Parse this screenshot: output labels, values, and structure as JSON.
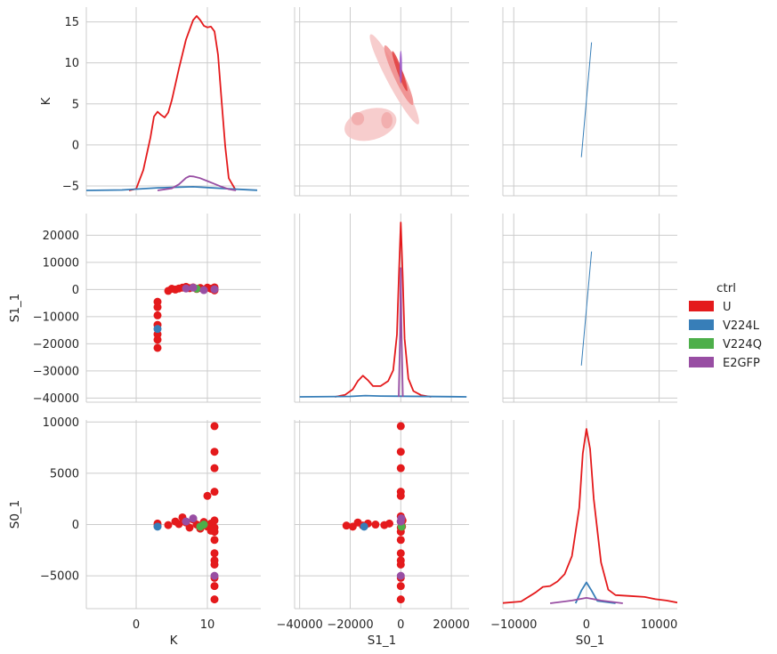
{
  "chart_data": {
    "type": "pairplot",
    "variables": [
      "K",
      "S1_1",
      "S0_1"
    ],
    "axis_labels": {
      "x": [
        "K",
        "S1_1",
        "S0_1"
      ],
      "y": [
        "K",
        "S1_1",
        "S0_1"
      ]
    },
    "axes": {
      "K": {
        "lim": [
          -7,
          17.5
        ],
        "ylim": [
          -6.2,
          16.8
        ],
        "ticks": [
          0,
          10
        ],
        "yticks": [
          -5,
          0,
          5,
          10,
          15
        ]
      },
      "S1_1": {
        "lim": [
          -42000,
          27000
        ],
        "ylim": [
          -41500,
          28000
        ],
        "ticks": [
          -40000,
          -20000,
          0,
          20000
        ],
        "yticks": [
          -40000,
          -30000,
          -20000,
          -10000,
          0,
          10000,
          20000
        ]
      },
      "S0_1": {
        "lim": [
          -11500,
          12500
        ],
        "ylim": [
          -8200,
          10200
        ],
        "ticks": [
          -10000,
          0,
          10000
        ],
        "yticks": [
          -5000,
          0,
          5000,
          10000
        ]
      }
    },
    "grid": true,
    "legend": {
      "title": "ctrl",
      "placement": "right",
      "entries": [
        {
          "name": "U",
          "color": "#e41a1c"
        },
        {
          "name": "V224L",
          "color": "#377eb8"
        },
        {
          "name": "V224Q",
          "color": "#4daf4a"
        },
        {
          "name": "E2GFP",
          "color": "#984ea3"
        }
      ]
    },
    "diag_kde": {
      "K": [
        {
          "name": "U",
          "x": [
            -1,
            0,
            1,
            2,
            2.5,
            3,
            3.5,
            4,
            4.5,
            5,
            6,
            7,
            8,
            8.5,
            9,
            9.5,
            10,
            10.5,
            11,
            11.5,
            12,
            12.5,
            13,
            14
          ],
          "y": [
            0,
            0.2,
            2.5,
            6.5,
            9.1,
            9.7,
            9.3,
            9.0,
            9.6,
            11.1,
            15,
            18.6,
            21.0,
            21.5,
            21.0,
            20.3,
            20.1,
            20.2,
            19.6,
            16.7,
            11.0,
            5.5,
            1.5,
            0
          ]
        },
        {
          "name": "V224L",
          "x": [
            -7,
            -2,
            3,
            8,
            13,
            17
          ],
          "y": [
            0,
            0.05,
            0.32,
            0.45,
            0.2,
            0.02
          ]
        },
        {
          "name": "E2GFP",
          "x": [
            3,
            5,
            6,
            7,
            7.5,
            8,
            9,
            10,
            11,
            12,
            13,
            14
          ],
          "y": [
            0,
            0.25,
            0.75,
            1.55,
            1.75,
            1.72,
            1.5,
            1.15,
            0.8,
            0.45,
            0.15,
            0
          ]
        }
      ],
      "S1_1": [
        {
          "name": "U",
          "x": [
            -26000,
            -22000,
            -19000,
            -17000,
            -15000,
            -13000,
            -11000,
            -8000,
            -5000,
            -3000,
            -1500,
            -700,
            0,
            700,
            1500,
            3000,
            5000,
            8000,
            12000
          ],
          "y": [
            0,
            0.25,
            0.9,
            1.9,
            2.55,
            2.0,
            1.3,
            1.3,
            1.9,
            3.2,
            7.5,
            15.0,
            21.0,
            15.0,
            7.0,
            2.2,
            0.7,
            0.2,
            0
          ]
        },
        {
          "name": "V224L",
          "x": [
            -40000,
            -20000,
            -14000,
            -8000,
            0,
            20000,
            26000
          ],
          "y": [
            0,
            0.05,
            0.15,
            0.1,
            0.08,
            0.02,
            0
          ]
        },
        {
          "name": "E2GFP",
          "x": [
            -800,
            -300,
            0,
            300,
            800
          ],
          "y": [
            0,
            7.5,
            15.5,
            7.5,
            0
          ]
        }
      ],
      "S0_1": [
        {
          "name": "U",
          "x": [
            -12000,
            -9000,
            -7000,
            -6000,
            -5000,
            -4000,
            -3000,
            -2000,
            -1000,
            -500,
            0,
            500,
            1000,
            2000,
            3000,
            4000,
            6000,
            8000,
            9500,
            11000,
            12500
          ],
          "y": [
            0,
            0.2,
            1.2,
            1.8,
            1.9,
            2.4,
            3.2,
            5.2,
            10.5,
            16.5,
            19.2,
            17.0,
            11.5,
            4.5,
            1.5,
            0.9,
            0.8,
            0.7,
            0.45,
            0.3,
            0.08
          ]
        },
        {
          "name": "V224L",
          "x": [
            -1500,
            -700,
            0,
            700,
            1500,
            4000
          ],
          "y": [
            0,
            1.4,
            2.3,
            1.4,
            0.25,
            0
          ]
        },
        {
          "name": "E2GFP",
          "x": [
            -5000,
            -2000,
            0,
            2000,
            5000
          ],
          "y": [
            0,
            0.3,
            0.6,
            0.3,
            0
          ]
        }
      ]
    },
    "kde2d": {
      "row": "K",
      "col": "S1_1",
      "series": "U",
      "levels": [
        {
          "cx": -12000,
          "cy": 2.5,
          "rx": 10500,
          "ry": 1.9,
          "angle": 15,
          "color": "#f6c4c4"
        },
        {
          "cx": -2500,
          "cy": 8.0,
          "rx": 2800,
          "ry": 6.2,
          "angle": 28,
          "color": "#f6c4c4"
        },
        {
          "cx": -800,
          "cy": 8.5,
          "rx": 2000,
          "ry": 4.0,
          "angle": 25,
          "color": "#ee8a8a"
        },
        {
          "cx": -400,
          "cy": 9.0,
          "rx": 1000,
          "ry": 2.6,
          "angle": 20,
          "color": "#e23d3d"
        },
        {
          "cx": -5500,
          "cy": 3.0,
          "rx": 2200,
          "ry": 1.0,
          "angle": 0,
          "color": "#f1a9a9"
        },
        {
          "cx": -17000,
          "cy": 3.2,
          "rx": 2500,
          "ry": 0.8,
          "angle": 0,
          "color": "#f1a9a9"
        }
      ],
      "overlay": {
        "name": "E2GFP",
        "cx": 0,
        "cy": 9.5,
        "rx": 500,
        "ry": 2.0,
        "color": "#9b59c9"
      }
    },
    "lines": [
      {
        "row": "K",
        "col": "S0_1",
        "series": "V224L",
        "x": [
          -700,
          700
        ],
        "y": [
          -1.5,
          12.5
        ]
      },
      {
        "row": "S1_1",
        "col": "S0_1",
        "series": "V224L",
        "x": [
          -700,
          700
        ],
        "y": [
          -28000,
          14000
        ]
      }
    ],
    "scatter": {
      "S1_1_vs_K": {
        "U": [
          [
            3,
            -4500
          ],
          [
            3,
            -6500
          ],
          [
            3,
            -9500
          ],
          [
            3,
            -13000
          ],
          [
            3,
            -16500
          ],
          [
            3,
            -18500
          ],
          [
            3,
            -21500
          ],
          [
            4.5,
            -500
          ],
          [
            5,
            300
          ],
          [
            5.5,
            0
          ],
          [
            6,
            400
          ],
          [
            6.5,
            700
          ],
          [
            7,
            1000
          ],
          [
            7.5,
            500
          ],
          [
            8,
            800
          ],
          [
            8.5,
            200
          ],
          [
            9,
            600
          ],
          [
            9.5,
            0
          ],
          [
            10,
            700
          ],
          [
            10.5,
            300
          ],
          [
            11,
            800
          ],
          [
            11,
            0
          ],
          [
            11,
            -300
          ],
          [
            11,
            500
          ]
        ],
        "V224L": [
          [
            3,
            -14500
          ]
        ],
        "V224Q": [
          [
            8.5,
            300
          ]
        ],
        "E2GFP": [
          [
            7,
            400
          ],
          [
            8,
            700
          ],
          [
            9.5,
            -200
          ],
          [
            11,
            100
          ]
        ]
      },
      "S0_1_vs_K": {
        "U": [
          [
            3,
            100
          ],
          [
            3,
            -150
          ],
          [
            4.5,
            -50
          ],
          [
            5.5,
            300
          ],
          [
            6,
            50
          ],
          [
            6.5,
            700
          ],
          [
            7,
            200
          ],
          [
            7.5,
            -300
          ],
          [
            8,
            500
          ],
          [
            8.5,
            0
          ],
          [
            9,
            -400
          ],
          [
            9.5,
            250
          ],
          [
            10,
            -200
          ],
          [
            10.5,
            100
          ],
          [
            10,
            2800
          ],
          [
            11,
            -700
          ],
          [
            11,
            -300
          ],
          [
            11,
            400
          ],
          [
            11,
            9600
          ],
          [
            11,
            7100
          ],
          [
            11,
            5500
          ],
          [
            11,
            3200
          ],
          [
            11,
            -1500
          ],
          [
            11,
            -2800
          ],
          [
            11,
            -3500
          ],
          [
            11,
            -3900
          ],
          [
            11,
            -5200
          ],
          [
            11,
            -6000
          ],
          [
            11,
            -7300
          ],
          [
            10.5,
            -600
          ]
        ],
        "V224L": [
          [
            3,
            -200
          ]
        ],
        "V224Q": [
          [
            9,
            -200
          ],
          [
            9.5,
            0
          ]
        ],
        "E2GFP": [
          [
            7,
            300
          ],
          [
            8,
            600
          ],
          [
            11,
            -5000
          ]
        ]
      },
      "S0_1_vs_S1_1": {
        "U": [
          [
            -21500,
            -100
          ],
          [
            -19000,
            -200
          ],
          [
            -17000,
            200
          ],
          [
            -15000,
            -100
          ],
          [
            -13000,
            100
          ],
          [
            -10000,
            0
          ],
          [
            -6500,
            -50
          ],
          [
            -4500,
            100
          ],
          [
            0,
            9600
          ],
          [
            0,
            7100
          ],
          [
            0,
            5500
          ],
          [
            0,
            3200
          ],
          [
            0,
            2800
          ],
          [
            0,
            800
          ],
          [
            0,
            300
          ],
          [
            0,
            -300
          ],
          [
            0,
            -700
          ],
          [
            0,
            -1500
          ],
          [
            0,
            -2800
          ],
          [
            0,
            -3500
          ],
          [
            0,
            -3900
          ],
          [
            0,
            -5200
          ],
          [
            0,
            -6000
          ],
          [
            0,
            -7300
          ],
          [
            300,
            600
          ],
          [
            500,
            -200
          ],
          [
            700,
            400
          ]
        ],
        "V224L": [
          [
            -14500,
            -200
          ]
        ],
        "V224Q": [
          [
            300,
            -200
          ]
        ],
        "E2GFP": [
          [
            0,
            300
          ],
          [
            200,
            600
          ],
          [
            0,
            -5000
          ]
        ]
      }
    }
  }
}
